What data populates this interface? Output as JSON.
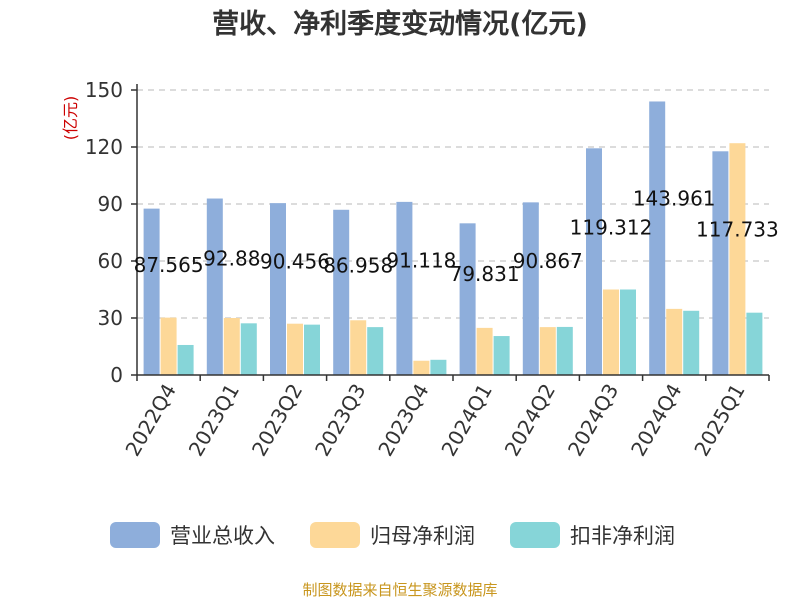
{
  "chart_data": {
    "type": "bar",
    "title": "营收、净利季度变动情况(亿元)",
    "ylabel": "(亿元)",
    "xlabel": "",
    "ylim": [
      0,
      150
    ],
    "yticks": [
      0,
      30,
      60,
      90,
      120,
      150
    ],
    "grid": true,
    "legend_position": "bottom",
    "categories": [
      "2022Q4",
      "2023Q1",
      "2023Q2",
      "2023Q3",
      "2023Q4",
      "2024Q1",
      "2024Q2",
      "2024Q3",
      "2024Q4",
      "2025Q1"
    ],
    "series": [
      {
        "name": "营业总收入",
        "color": "#8eaedb",
        "values": [
          87.565,
          92.88,
          90.456,
          86.958,
          91.118,
          79.831,
          90.867,
          119.312,
          143.961,
          117.733
        ]
      },
      {
        "name": "归母净利润",
        "color": "#fdd898",
        "values": [
          30.2,
          30.0,
          27.0,
          28.8,
          7.5,
          24.8,
          25.2,
          45.0,
          34.8,
          122.0
        ]
      },
      {
        "name": "扣非净利润",
        "color": "#86d5d8",
        "values": [
          15.8,
          27.2,
          26.5,
          25.2,
          8.0,
          20.5,
          25.3,
          45.0,
          33.8,
          32.8
        ]
      }
    ],
    "data_labels": [
      "87.565",
      "92.88",
      "90.456",
      "86.958",
      "91.118",
      "79.831",
      "90.867",
      "119.312",
      "143.961",
      "117.733"
    ]
  },
  "footer": {
    "source": "制图数据来自恒生聚源数据库"
  }
}
